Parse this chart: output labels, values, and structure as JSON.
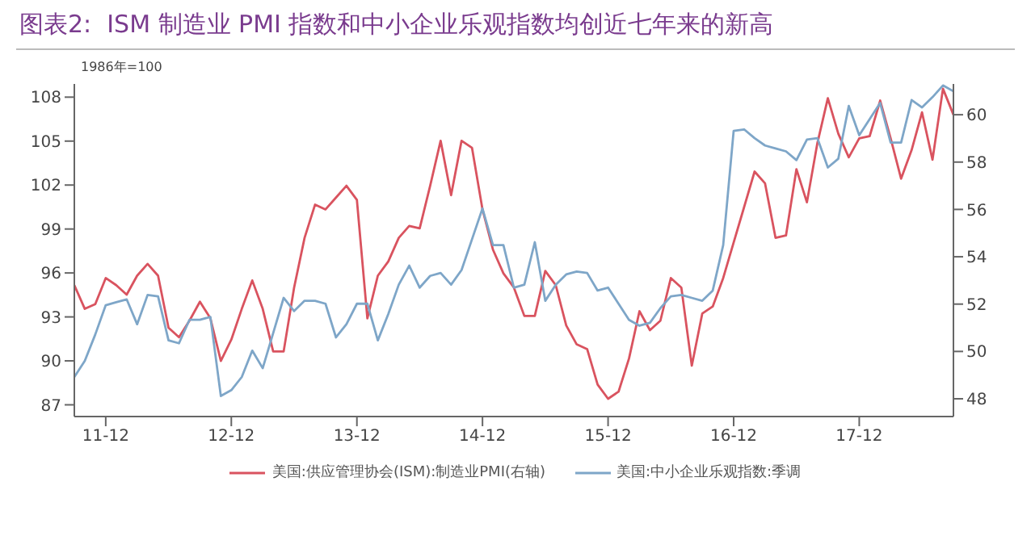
{
  "chart_data": {
    "type": "line",
    "title": "图表2:  ISM 制造业 PMI 指数和中小企业乐观指数均创近七年来的新高",
    "annotations": [
      "1986年=100"
    ],
    "x": [
      "2011-09",
      "2011-10",
      "2011-11",
      "2011-12",
      "2012-01",
      "2012-02",
      "2012-03",
      "2012-04",
      "2012-05",
      "2012-06",
      "2012-07",
      "2012-08",
      "2012-09",
      "2012-10",
      "2012-11",
      "2012-12",
      "2013-01",
      "2013-02",
      "2013-03",
      "2013-04",
      "2013-05",
      "2013-06",
      "2013-07",
      "2013-08",
      "2013-09",
      "2013-10",
      "2013-11",
      "2013-12",
      "2014-01",
      "2014-02",
      "2014-03",
      "2014-04",
      "2014-05",
      "2014-06",
      "2014-07",
      "2014-08",
      "2014-09",
      "2014-10",
      "2014-11",
      "2014-12",
      "2015-01",
      "2015-02",
      "2015-03",
      "2015-04",
      "2015-05",
      "2015-06",
      "2015-07",
      "2015-08",
      "2015-09",
      "2015-10",
      "2015-11",
      "2015-12",
      "2016-01",
      "2016-02",
      "2016-03",
      "2016-04",
      "2016-05",
      "2016-06",
      "2016-07",
      "2016-08",
      "2016-09",
      "2016-10",
      "2016-11",
      "2016-12",
      "2017-01",
      "2017-02",
      "2017-03",
      "2017-04",
      "2017-05",
      "2017-06",
      "2017-07",
      "2017-08",
      "2017-09",
      "2017-10",
      "2017-11",
      "2017-12",
      "2018-01",
      "2018-02",
      "2018-03",
      "2018-04",
      "2018-05",
      "2018-06",
      "2018-07",
      "2018-08",
      "2018-09"
    ],
    "series": [
      {
        "name": "美国:供应管理协会(ISM):制造业PMI(右轴)",
        "color": "#d9535f",
        "axis": "y2",
        "values": [
          52.8,
          51.8,
          52.0,
          53.1,
          52.8,
          52.4,
          53.2,
          53.7,
          53.2,
          51.0,
          50.6,
          51.3,
          52.1,
          51.4,
          49.6,
          50.5,
          51.8,
          53.0,
          51.8,
          50.0,
          50.0,
          52.7,
          54.8,
          56.2,
          56.0,
          56.5,
          57.0,
          56.4,
          51.4,
          53.2,
          53.8,
          54.8,
          55.3,
          55.2,
          57.0,
          58.9,
          56.6,
          58.9,
          58.6,
          56.0,
          54.3,
          53.3,
          52.7,
          51.5,
          51.5,
          53.4,
          52.8,
          51.1,
          50.3,
          50.1,
          48.6,
          48.0,
          48.3,
          49.7,
          51.7,
          50.9,
          51.3,
          53.1,
          52.7,
          49.4,
          51.6,
          51.9,
          53.1,
          54.6,
          56.1,
          57.6,
          57.1,
          54.8,
          54.9,
          57.7,
          56.3,
          58.8,
          60.7,
          59.2,
          58.2,
          59.0,
          59.1,
          60.6,
          59.0,
          57.3,
          58.5,
          60.1,
          58.1,
          61.1,
          60.0
        ]
      },
      {
        "name": "美国:中小企业乐观指数:季调",
        "color": "#7ea6c8",
        "values": [
          88.9,
          90.0,
          91.8,
          93.8,
          94.0,
          94.2,
          92.5,
          94.5,
          94.4,
          91.4,
          91.2,
          92.8,
          92.8,
          93.0,
          87.6,
          88.0,
          88.9,
          90.7,
          89.5,
          91.9,
          94.3,
          93.4,
          94.1,
          94.1,
          93.9,
          91.6,
          92.5,
          93.9,
          93.9,
          91.4,
          93.2,
          95.2,
          96.5,
          95.0,
          95.8,
          96.0,
          95.2,
          96.2,
          98.3,
          100.4,
          97.9,
          97.9,
          95.0,
          95.2,
          98.1,
          94.1,
          95.2,
          95.9,
          96.1,
          96.0,
          94.8,
          95.0,
          93.9,
          92.8,
          92.4,
          92.6,
          93.6,
          94.4,
          94.5,
          94.3,
          94.1,
          94.8,
          97.9,
          105.7,
          105.8,
          105.2,
          104.7,
          104.5,
          104.3,
          103.7,
          105.1,
          105.2,
          103.2,
          103.8,
          107.4,
          105.4,
          106.5,
          107.6,
          104.9,
          104.9,
          107.8,
          107.3,
          108.0,
          108.8,
          108.4
        ]
      }
    ],
    "xlim": [
      "2011-09",
      "2018-09"
    ],
    "xticks": [
      {
        "value": "2011-12",
        "label": "11-12"
      },
      {
        "value": "2012-12",
        "label": "12-12"
      },
      {
        "value": "2013-12",
        "label": "13-12"
      },
      {
        "value": "2014-12",
        "label": "14-12"
      },
      {
        "value": "2015-12",
        "label": "15-12"
      },
      {
        "value": "2016-12",
        "label": "16-12"
      },
      {
        "value": "2017-12",
        "label": "17-12"
      }
    ],
    "ylim": [
      86.2,
      108.9
    ],
    "yticks": [
      87,
      90,
      93,
      96,
      99,
      102,
      105,
      108
    ],
    "y2lim": [
      47.25,
      61.3
    ],
    "y2ticks": [
      48,
      50,
      52,
      54,
      56,
      58,
      60
    ],
    "legend": "bottom",
    "grid": false,
    "marker": "none",
    "line_style": "solid"
  }
}
